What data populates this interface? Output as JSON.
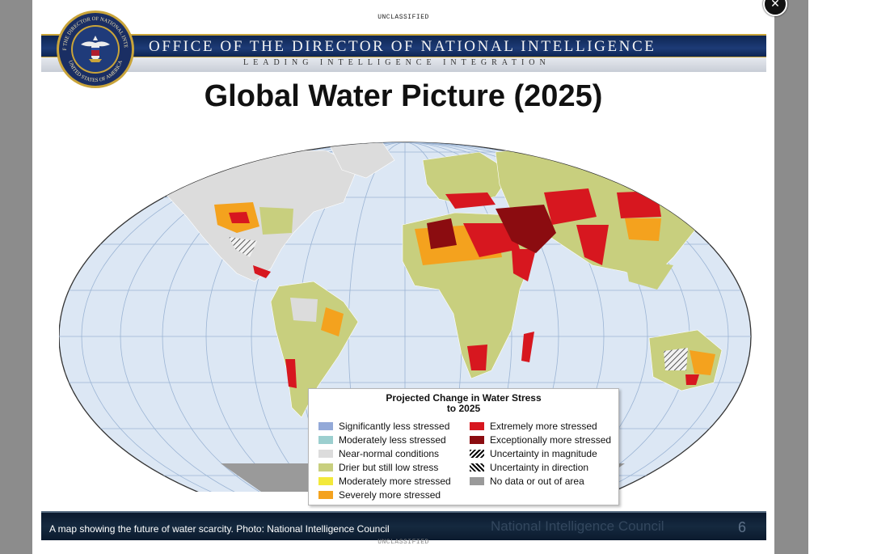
{
  "header": {
    "classification_top": "UNCLASSIFIED",
    "banner_title": "OFFICE OF THE DIRECTOR OF NATIONAL INTELLIGENCE",
    "banner_subtitle": "LEADING INTELLIGENCE INTEGRATION",
    "seal_text_top": "OFFICE OF THE DIRECTOR OF NATIONAL INTELLIGENCE",
    "seal_text_bottom": "UNITED STATES OF AMERICA"
  },
  "slide": {
    "title": "Global Water Picture (2025)"
  },
  "legend": {
    "title_line1": "Projected Change in Water Stress",
    "title_line2": "to 2025",
    "left_items": [
      {
        "label": "Significantly less stressed",
        "color": "#93a9d8"
      },
      {
        "label": "Moderately less stressed",
        "color": "#9ccfcf"
      },
      {
        "label": "Near-normal conditions",
        "color": "#dcdcdc"
      },
      {
        "label": "Drier but still low stress",
        "color": "#c8cf7e"
      },
      {
        "label": "Moderately more stressed",
        "color": "#f3e93a"
      },
      {
        "label": "Severely more stressed",
        "color": "#f4a21e"
      }
    ],
    "right_items": [
      {
        "label": "Extremely more stressed",
        "color": "#d7171f"
      },
      {
        "label": "Exceptionally more stressed",
        "color": "#8b0c10"
      },
      {
        "label": "Uncertainty in magnitude",
        "pattern": "hatch-magnitude"
      },
      {
        "label": "Uncertainty in direction",
        "pattern": "hatch-direction"
      },
      {
        "label": "No data or out of area",
        "color": "#9a9a9a"
      }
    ]
  },
  "footer": {
    "caption": "A map showing the future of water scarcity. Photo: National Intelligence Council",
    "organization": "National Intelligence Council",
    "page_number": "6",
    "classification_bottom": "UNCLASSIFIED"
  },
  "colors": {
    "ocean": "#dce7f4",
    "graticule": "#9bb4d4",
    "land_neutral": "#dcdcdc",
    "banner_blue": "#15306a",
    "banner_gold": "#c9a43a"
  },
  "close_icon": "close-icon"
}
